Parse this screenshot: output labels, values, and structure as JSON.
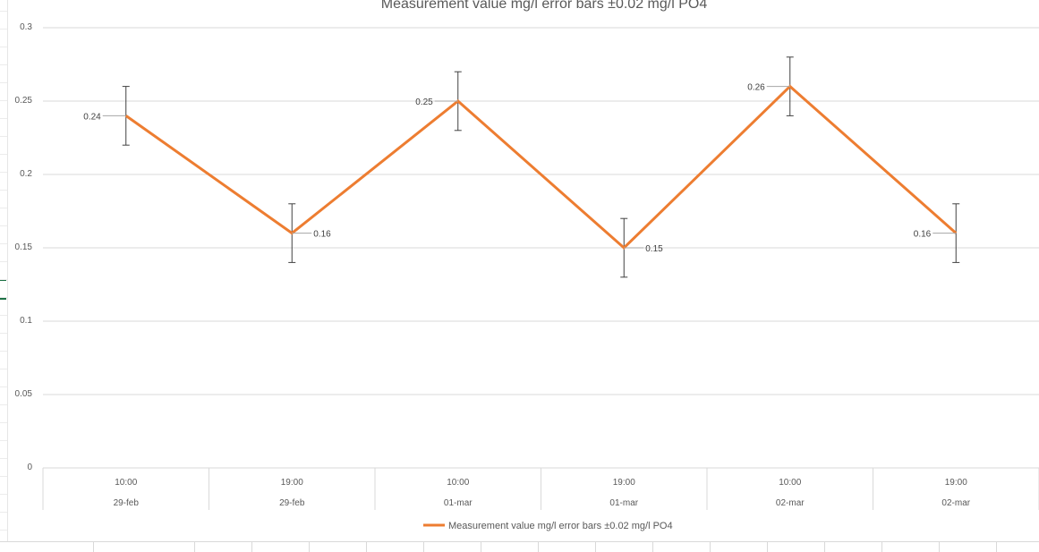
{
  "chart_data": {
    "type": "line",
    "title": "Measurement value mg/l error bars ±0.02 mg/l PO4",
    "categories": [
      [
        "10:00",
        "29-feb"
      ],
      [
        "19:00",
        "29-feb"
      ],
      [
        "10:00",
        "01-mar"
      ],
      [
        "19:00",
        "01-mar"
      ],
      [
        "10:00",
        "02-mar"
      ],
      [
        "19:00",
        "02-mar"
      ]
    ],
    "series": [
      {
        "name": "Measurement value mg/l error bars ±0.02 mg/l PO4",
        "values": [
          0.24,
          0.16,
          0.25,
          0.15,
          0.26,
          0.16
        ],
        "data_labels": [
          "0.24",
          "0.16",
          "0.25",
          "0.15",
          "0.26",
          "0.16"
        ],
        "error": 0.02,
        "color": "#ED7D31"
      }
    ],
    "yticks": [
      "0",
      "0.05",
      "0.1",
      "0.15",
      "0.2",
      "0.25",
      "0.3"
    ],
    "ylim": [
      0,
      0.3
    ],
    "grid": true,
    "legend": "bottom"
  }
}
